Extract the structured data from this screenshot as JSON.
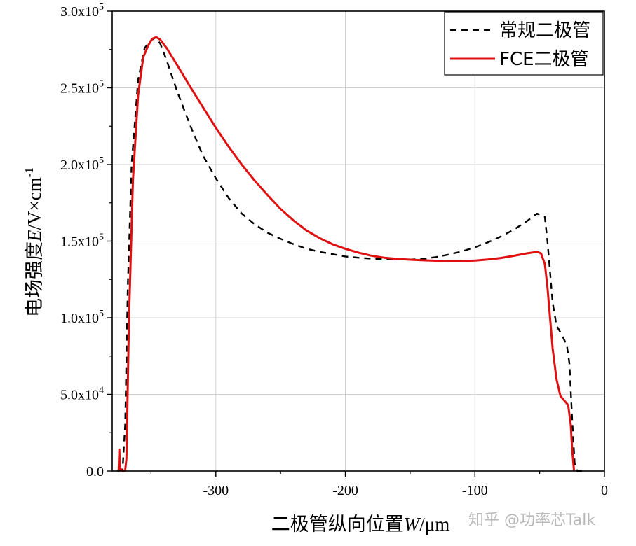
{
  "chart_data": {
    "type": "line",
    "xlabel": "二极管纵向位置W/μm",
    "ylabel": "电场强度E/V×cm-1",
    "xlim": [
      -380,
      0
    ],
    "ylim": [
      0,
      300000
    ],
    "x_ticks": [
      -300,
      -200,
      -100,
      0
    ],
    "x_tick_labels": [
      "-300",
      "-200",
      "-100",
      "0"
    ],
    "y_ticks": [
      0,
      50000,
      100000,
      150000,
      200000,
      250000,
      300000
    ],
    "y_tick_labels": [
      {
        "mantissa": "0.0",
        "exp": ""
      },
      {
        "mantissa": "5.0x10",
        "exp": "4"
      },
      {
        "mantissa": "1.0x10",
        "exp": "5"
      },
      {
        "mantissa": "1.5x10",
        "exp": "5"
      },
      {
        "mantissa": "2.0x10",
        "exp": "5"
      },
      {
        "mantissa": "2.5x10",
        "exp": "5"
      },
      {
        "mantissa": "3.0x10",
        "exp": "5"
      }
    ],
    "grid": true,
    "legend_position": "top-right",
    "series": [
      {
        "name": "常规二极管",
        "color": "#000000",
        "dash": "dashed",
        "points": [
          [
            -376,
            0
          ],
          [
            -374,
            500
          ],
          [
            -372,
            1000
          ],
          [
            -370,
            30000
          ],
          [
            -368,
            120000
          ],
          [
            -365,
            200000
          ],
          [
            -360,
            255000
          ],
          [
            -355,
            276000
          ],
          [
            -350,
            281000
          ],
          [
            -347,
            282500
          ],
          [
            -343,
            279000
          ],
          [
            -338,
            268000
          ],
          [
            -330,
            248000
          ],
          [
            -320,
            226000
          ],
          [
            -310,
            206000
          ],
          [
            -300,
            191000
          ],
          [
            -290,
            178000
          ],
          [
            -280,
            168000
          ],
          [
            -270,
            161000
          ],
          [
            -260,
            155500
          ],
          [
            -250,
            151500
          ],
          [
            -240,
            148000
          ],
          [
            -230,
            145000
          ],
          [
            -220,
            143000
          ],
          [
            -210,
            141500
          ],
          [
            -200,
            140000
          ],
          [
            -190,
            139200
          ],
          [
            -180,
            138600
          ],
          [
            -170,
            138200
          ],
          [
            -160,
            138000
          ],
          [
            -150,
            138000
          ],
          [
            -140,
            138400
          ],
          [
            -130,
            139600
          ],
          [
            -120,
            141300
          ],
          [
            -110,
            143300
          ],
          [
            -100,
            146000
          ],
          [
            -90,
            149200
          ],
          [
            -80,
            153000
          ],
          [
            -70,
            157500
          ],
          [
            -60,
            163000
          ],
          [
            -52,
            168000
          ],
          [
            -46,
            166000
          ],
          [
            -44,
            150000
          ],
          [
            -42,
            130000
          ],
          [
            -40,
            110000
          ],
          [
            -37,
            95000
          ],
          [
            -33,
            89000
          ],
          [
            -29,
            82000
          ],
          [
            -27,
            70000
          ],
          [
            -25,
            35000
          ],
          [
            -23,
            5000
          ],
          [
            -21,
            0
          ],
          [
            -16,
            0
          ]
        ]
      },
      {
        "name": "FCE二极管",
        "color": "#e01010",
        "dash": "solid",
        "points": [
          [
            -375,
            0
          ],
          [
            -374.5,
            14000
          ],
          [
            -374,
            2000
          ],
          [
            -372,
            0
          ],
          [
            -370,
            500
          ],
          [
            -369,
            8000
          ],
          [
            -367,
            100000
          ],
          [
            -364,
            190000
          ],
          [
            -360,
            245000
          ],
          [
            -356,
            270000
          ],
          [
            -352,
            278000
          ],
          [
            -349,
            282000
          ],
          [
            -346,
            283000
          ],
          [
            -343,
            281500
          ],
          [
            -338,
            276000
          ],
          [
            -330,
            265000
          ],
          [
            -320,
            251000
          ],
          [
            -310,
            237500
          ],
          [
            -300,
            224000
          ],
          [
            -290,
            211500
          ],
          [
            -280,
            200000
          ],
          [
            -270,
            189500
          ],
          [
            -260,
            180000
          ],
          [
            -250,
            171000
          ],
          [
            -240,
            163500
          ],
          [
            -230,
            157000
          ],
          [
            -220,
            152000
          ],
          [
            -210,
            148000
          ],
          [
            -200,
            145000
          ],
          [
            -190,
            142500
          ],
          [
            -180,
            140500
          ],
          [
            -170,
            139200
          ],
          [
            -160,
            138400
          ],
          [
            -150,
            137900
          ],
          [
            -140,
            137500
          ],
          [
            -130,
            137200
          ],
          [
            -120,
            137000
          ],
          [
            -110,
            137000
          ],
          [
            -100,
            137300
          ],
          [
            -90,
            138000
          ],
          [
            -80,
            139000
          ],
          [
            -70,
            140400
          ],
          [
            -60,
            142000
          ],
          [
            -52,
            143000
          ],
          [
            -49,
            142000
          ],
          [
            -46,
            135000
          ],
          [
            -44,
            120000
          ],
          [
            -42,
            100000
          ],
          [
            -40,
            80000
          ],
          [
            -37,
            60000
          ],
          [
            -34,
            49000
          ],
          [
            -31,
            46000
          ],
          [
            -28,
            43000
          ],
          [
            -26,
            30000
          ],
          [
            -25,
            15000
          ],
          [
            -23.5,
            0
          ]
        ]
      }
    ]
  },
  "watermark": "知乎 @功率芯Talk",
  "colors": {
    "axis": "#000000",
    "grid": "#d0d0d0",
    "background": "#ffffff"
  }
}
